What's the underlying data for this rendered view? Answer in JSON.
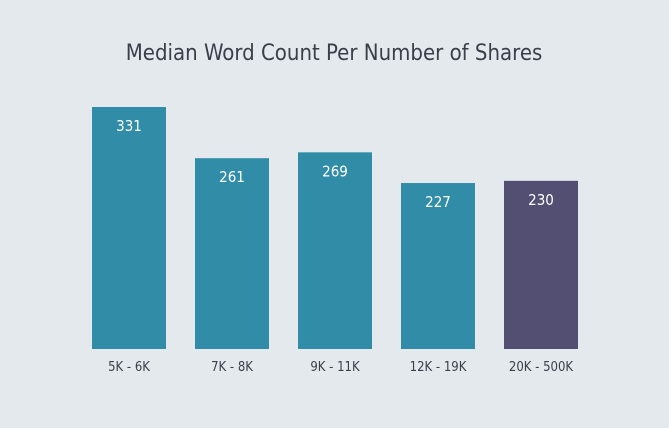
{
  "chart_data": {
    "type": "bar",
    "title": "Median Word Count Per Number of Shares",
    "xlabel": "",
    "ylabel": "",
    "categories": [
      "5K - 6K",
      "7K - 8K",
      "9K - 11K",
      "12K - 19K",
      "20K - 500K"
    ],
    "values": [
      331,
      261,
      269,
      227,
      230
    ],
    "ylim": [
      0,
      331
    ],
    "grid": false,
    "data_labels": true,
    "colors": [
      "#318ca8",
      "#318ca8",
      "#318ca8",
      "#318ca8",
      "#524f72"
    ],
    "background": "#e4e9ed"
  }
}
